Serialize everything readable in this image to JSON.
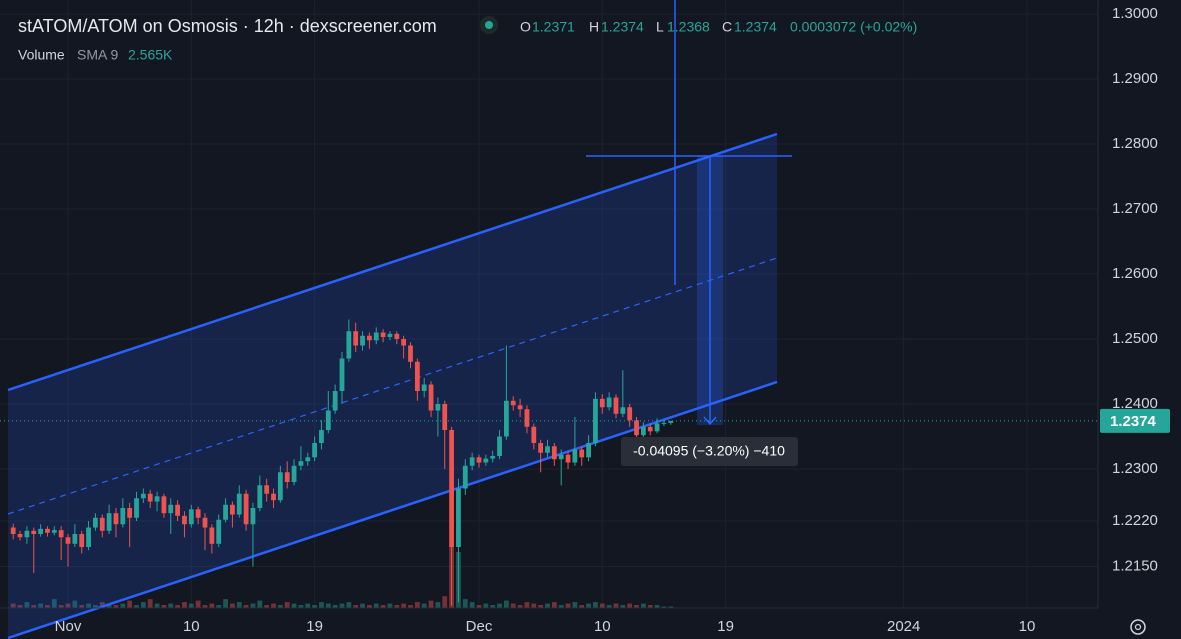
{
  "chart_data": {
    "type": "candlestick",
    "title": "stATOM/ATOM on Osmosis · 12h · dexscreener.com",
    "ohlc_labels": [
      "O",
      "H",
      "L",
      "C"
    ],
    "change": "0.0003072 (+0.02%)",
    "volume_label": "Volume",
    "volume_sma": "SMA 9",
    "volume_sma_value": "2.565K",
    "measure_label": "-0.04095 (−3.20%) −410",
    "up_color": "#26a69a",
    "down_color": "#ef5350",
    "grid": true,
    "xlim": [
      -1.93,
      158.37
    ],
    "xticks": [
      {
        "value": 8,
        "label": "Nov"
      },
      {
        "value": 26,
        "label": "10"
      },
      {
        "value": 44,
        "label": "19"
      },
      {
        "value": 68,
        "label": "Dec"
      },
      {
        "value": 86,
        "label": "10"
      },
      {
        "value": 104,
        "label": "19"
      },
      {
        "value": 130,
        "label": "2024"
      },
      {
        "value": 148,
        "label": "10"
      }
    ],
    "ylim": [
      1.20862,
      1.30215
    ],
    "yticks": [
      {
        "value": 1.3,
        "label": "1.3000"
      },
      {
        "value": 1.29,
        "label": "1.2900"
      },
      {
        "value": 1.28,
        "label": "1.2800"
      },
      {
        "value": 1.27,
        "label": "1.2700"
      },
      {
        "value": 1.26,
        "label": "1.2600"
      },
      {
        "value": 1.25,
        "label": "1.2500"
      },
      {
        "value": 1.24,
        "label": "1.2400"
      },
      {
        "value": 1.23,
        "label": "1.2300"
      },
      {
        "value": 1.222,
        "label": "1.2220"
      },
      {
        "value": 1.215,
        "label": "1.2150"
      }
    ],
    "ohlc": [
      [
        1.221,
        1.2216,
        1.2192,
        1.22
      ],
      [
        1.22,
        1.2205,
        1.219,
        1.2195
      ],
      [
        1.2195,
        1.2212,
        1.2185,
        1.2205
      ],
      [
        1.2205,
        1.221,
        1.214,
        1.22
      ],
      [
        1.22,
        1.2215,
        1.2196,
        1.2208
      ],
      [
        1.2208,
        1.2212,
        1.2196,
        1.2202
      ],
      [
        1.2202,
        1.2212,
        1.2198,
        1.2206
      ],
      [
        1.2206,
        1.2212,
        1.216,
        1.2195
      ],
      [
        1.2195,
        1.22,
        1.215,
        1.2185
      ],
      [
        1.2185,
        1.2215,
        1.218,
        1.22
      ],
      [
        1.22,
        1.2205,
        1.217,
        1.218
      ],
      [
        1.218,
        1.222,
        1.2175,
        1.221
      ],
      [
        1.221,
        1.2232,
        1.2205,
        1.2225
      ],
      [
        1.2225,
        1.223,
        1.2195,
        1.2205
      ],
      [
        1.2205,
        1.2245,
        1.22,
        1.2232
      ],
      [
        1.2232,
        1.224,
        1.2195,
        1.2215
      ],
      [
        1.2215,
        1.2255,
        1.221,
        1.224
      ],
      [
        1.224,
        1.2248,
        1.218,
        1.2225
      ],
      [
        1.2225,
        1.2265,
        1.222,
        1.2255
      ],
      [
        1.2255,
        1.227,
        1.2248,
        1.2262
      ],
      [
        1.2262,
        1.2268,
        1.224,
        1.225
      ],
      [
        1.225,
        1.2265,
        1.2235,
        1.2258
      ],
      [
        1.2258,
        1.2262,
        1.2225,
        1.2232
      ],
      [
        1.2232,
        1.2255,
        1.22,
        1.2245
      ],
      [
        1.2245,
        1.2252,
        1.222,
        1.2228
      ],
      [
        1.2228,
        1.2235,
        1.2195,
        1.2215
      ],
      [
        1.2215,
        1.2245,
        1.221,
        1.2238
      ],
      [
        1.2238,
        1.2242,
        1.2215,
        1.2225
      ],
      [
        1.2225,
        1.2232,
        1.2175,
        1.221
      ],
      [
        1.221,
        1.2215,
        1.217,
        1.2185
      ],
      [
        1.2185,
        1.223,
        1.218,
        1.2222
      ],
      [
        1.2222,
        1.2255,
        1.2218,
        1.2245
      ],
      [
        1.2245,
        1.225,
        1.221,
        1.223
      ],
      [
        1.223,
        1.2275,
        1.2225,
        1.2262
      ],
      [
        1.2262,
        1.2268,
        1.2205,
        1.2215
      ],
      [
        1.2215,
        1.2248,
        1.215,
        1.224
      ],
      [
        1.224,
        1.229,
        1.2235,
        1.2275
      ],
      [
        1.2275,
        1.2285,
        1.225,
        1.2262
      ],
      [
        1.2262,
        1.227,
        1.224,
        1.2252
      ],
      [
        1.2252,
        1.2305,
        1.2248,
        1.2295
      ],
      [
        1.2295,
        1.2312,
        1.227,
        1.228
      ],
      [
        1.228,
        1.2315,
        1.2275,
        1.2305
      ],
      [
        1.2305,
        1.2335,
        1.2298,
        1.2312
      ],
      [
        1.2312,
        1.2325,
        1.2305,
        1.2318
      ],
      [
        1.2318,
        1.235,
        1.2312,
        1.234
      ],
      [
        1.234,
        1.2375,
        1.233,
        1.236
      ],
      [
        1.236,
        1.242,
        1.2355,
        1.239
      ],
      [
        1.239,
        1.243,
        1.2385,
        1.242
      ],
      [
        1.242,
        1.248,
        1.24,
        1.247
      ],
      [
        1.247,
        1.253,
        1.2465,
        1.2512
      ],
      [
        1.2512,
        1.2525,
        1.248,
        1.249
      ],
      [
        1.249,
        1.2512,
        1.2482,
        1.2505
      ],
      [
        1.2505,
        1.251,
        1.2485,
        1.2498
      ],
      [
        1.2498,
        1.2518,
        1.2492,
        1.251
      ],
      [
        1.251,
        1.2515,
        1.2495,
        1.2503
      ],
      [
        1.2503,
        1.2512,
        1.2498,
        1.2508
      ],
      [
        1.2508,
        1.2512,
        1.2492,
        1.25
      ],
      [
        1.25,
        1.2505,
        1.247,
        1.249
      ],
      [
        1.249,
        1.2495,
        1.2455,
        1.2465
      ],
      [
        1.2465,
        1.247,
        1.2405,
        1.242
      ],
      [
        1.242,
        1.244,
        1.241,
        1.243
      ],
      [
        1.243,
        1.2435,
        1.238,
        1.239
      ],
      [
        1.239,
        1.241,
        1.235,
        1.24
      ],
      [
        1.24,
        1.2405,
        1.23,
        1.236
      ],
      [
        1.236,
        1.2365,
        1.209,
        1.218
      ],
      [
        1.218,
        1.2285,
        1.2095,
        1.227
      ],
      [
        1.227,
        1.2315,
        1.226,
        1.2305
      ],
      [
        1.2305,
        1.2325,
        1.2298,
        1.2318
      ],
      [
        1.2318,
        1.2322,
        1.2302,
        1.231
      ],
      [
        1.231,
        1.2322,
        1.2305,
        1.2316
      ],
      [
        1.2316,
        1.2328,
        1.231,
        1.232
      ],
      [
        1.232,
        1.236,
        1.2315,
        1.235
      ],
      [
        1.235,
        1.249,
        1.2345,
        1.2405
      ],
      [
        1.2405,
        1.2412,
        1.239,
        1.2398
      ],
      [
        1.2398,
        1.2408,
        1.238,
        1.2392
      ],
      [
        1.2392,
        1.2398,
        1.2355,
        1.2365
      ],
      [
        1.2365,
        1.237,
        1.233,
        1.234
      ],
      [
        1.234,
        1.2345,
        1.2295,
        1.2325
      ],
      [
        1.2325,
        1.2345,
        1.2318,
        1.2335
      ],
      [
        1.2335,
        1.234,
        1.2305,
        1.2315
      ],
      [
        1.2315,
        1.233,
        1.2275,
        1.2322
      ],
      [
        1.2322,
        1.2328,
        1.23,
        1.231
      ],
      [
        1.231,
        1.238,
        1.2305,
        1.233
      ],
      [
        1.233,
        1.2335,
        1.2305,
        1.2318
      ],
      [
        1.2318,
        1.2352,
        1.2312,
        1.234
      ],
      [
        1.234,
        1.2418,
        1.2335,
        1.2408
      ],
      [
        1.2408,
        1.2415,
        1.2385,
        1.2395
      ],
      [
        1.2395,
        1.2418,
        1.239,
        1.241
      ],
      [
        1.241,
        1.2415,
        1.2378,
        1.2385
      ],
      [
        1.2385,
        1.2452,
        1.238,
        1.2395
      ],
      [
        1.2395,
        1.24,
        1.2365,
        1.2375
      ],
      [
        1.2375,
        1.238,
        1.2345,
        1.2352
      ],
      [
        1.2352,
        1.2372,
        1.2348,
        1.2365
      ],
      [
        1.2365,
        1.237,
        1.2352,
        1.2358
      ],
      [
        1.2358,
        1.2378,
        1.2355,
        1.237
      ],
      [
        1.237,
        1.2376,
        1.2366,
        1.2371
      ],
      [
        1.2371,
        1.2374,
        1.2368,
        1.2374
      ]
    ],
    "volume": [
      3,
      2,
      4,
      2,
      3,
      2,
      6,
      2,
      3,
      5,
      2,
      3,
      2,
      4,
      3,
      2,
      3,
      5,
      2,
      4,
      6,
      3,
      2,
      3,
      2,
      4,
      3,
      5,
      2,
      3,
      2,
      6,
      3,
      4,
      2,
      3,
      5,
      2,
      3,
      2,
      4,
      3,
      2,
      3,
      2,
      4,
      3,
      2,
      3,
      4,
      2,
      3,
      2,
      3,
      2,
      3,
      2,
      3,
      2,
      4,
      3,
      5,
      4,
      8,
      42,
      38,
      6,
      4,
      2,
      3,
      2,
      3,
      5,
      3,
      2,
      4,
      3,
      2,
      3,
      4,
      2,
      3,
      4,
      2,
      3,
      4,
      3,
      2,
      3,
      2,
      3,
      2,
      3,
      2,
      2,
      1,
      1
    ]
  }
}
